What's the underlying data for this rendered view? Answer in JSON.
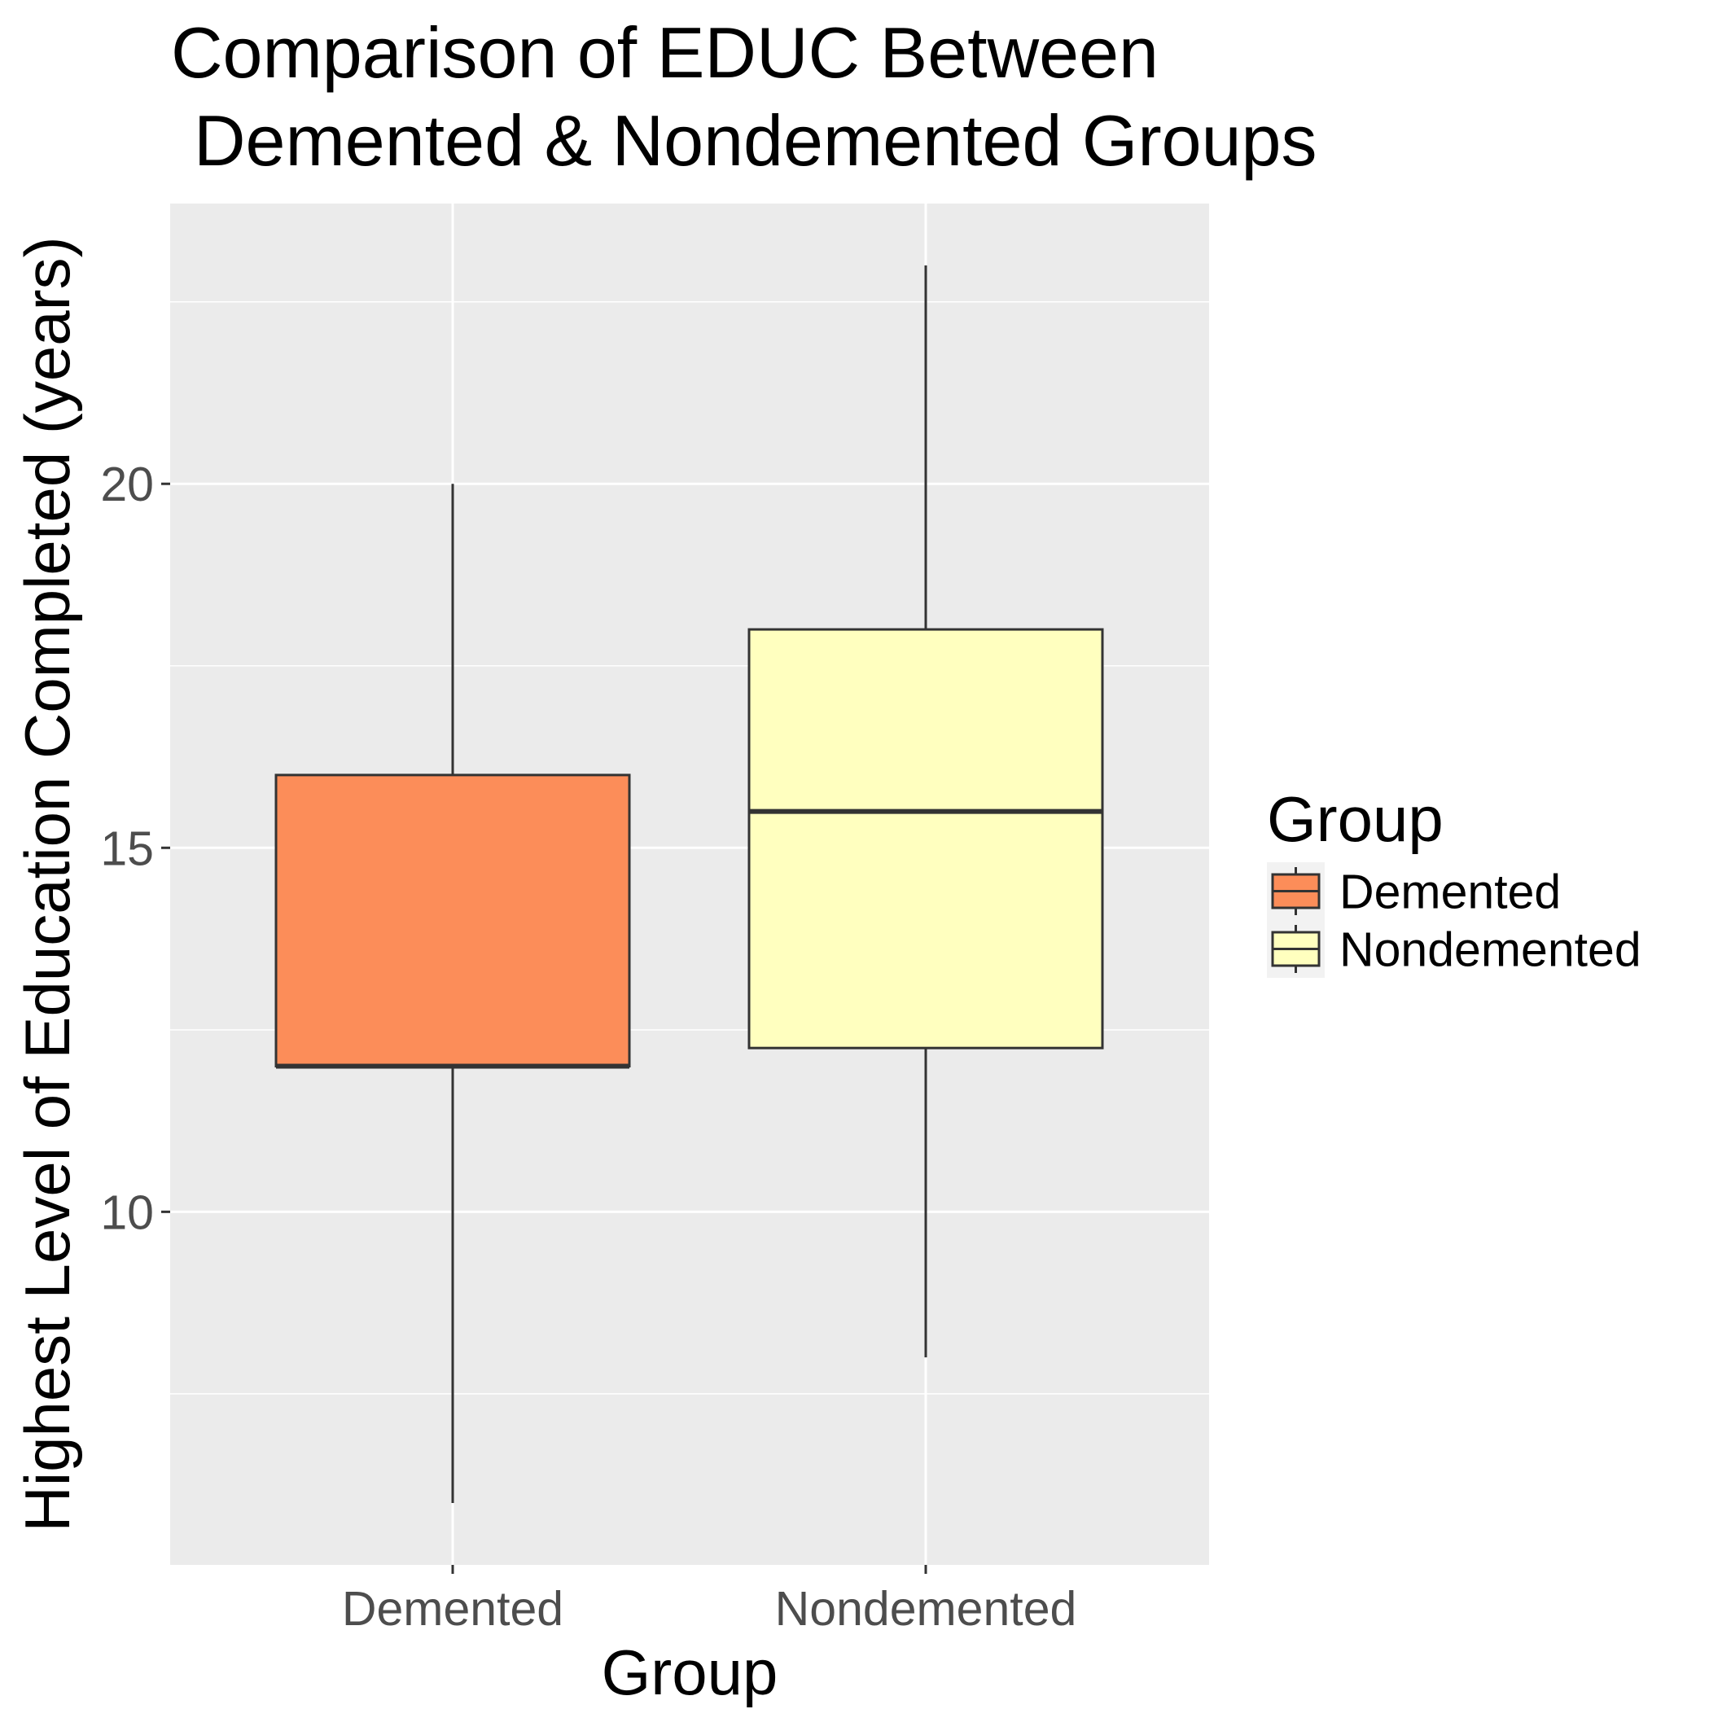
{
  "chart_data": {
    "type": "boxplot",
    "title_lines": [
      "Comparison of EDUC Between",
      "Demented & Nondemented Groups"
    ],
    "xlabel": "Group",
    "ylabel": "Highest Level of Education Completed (years)",
    "categories": [
      "Demented",
      "Nondemented"
    ],
    "boxes": [
      {
        "name": "Demented",
        "min": 6,
        "q1": 12,
        "median": 12,
        "q3": 16,
        "max": 20,
        "fill": "#fc8d59"
      },
      {
        "name": "Nondemented",
        "min": 8,
        "q1": 12.25,
        "median": 15.5,
        "q3": 18,
        "max": 23,
        "fill": "#ffffbf"
      }
    ],
    "ylim": [
      5.15,
      23.85
    ],
    "yticks": [
      10,
      15,
      20
    ],
    "ytick_labels": [
      "10",
      "15",
      "20"
    ],
    "y_minor_gridlines": [
      7.5,
      12.5,
      17.5,
      22.5
    ],
    "legend": {
      "title": "Group",
      "entries": [
        "Demented",
        "Nondemented"
      ],
      "placement": "right"
    },
    "grid": true,
    "panel_background": "#ebebeb",
    "box_outline_color": "#333333"
  }
}
